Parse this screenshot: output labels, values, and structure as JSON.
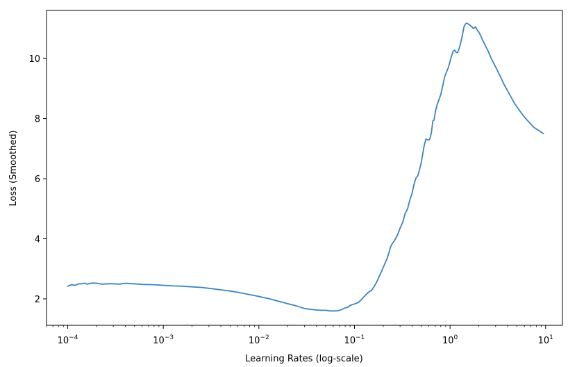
{
  "chart_data": {
    "type": "line",
    "xlabel": "Learning Rates (log-scale)",
    "ylabel": "Loss (Smoothed)",
    "xscale": "log",
    "xlim": [
      6e-05,
      15
    ],
    "ylim": [
      1.12,
      11.6
    ],
    "grid": false,
    "x_ticks": [
      {
        "base": "10",
        "exp": "−4",
        "value": 0.0001
      },
      {
        "base": "10",
        "exp": "−3",
        "value": 0.001
      },
      {
        "base": "10",
        "exp": "−2",
        "value": 0.01
      },
      {
        "base": "10",
        "exp": "−1",
        "value": 0.1
      },
      {
        "base": "10",
        "exp": "0",
        "value": 1
      },
      {
        "base": "10",
        "exp": "1",
        "value": 10
      }
    ],
    "y_ticks": [
      {
        "label": "2",
        "value": 2
      },
      {
        "label": "4",
        "value": 4
      },
      {
        "label": "6",
        "value": 6
      },
      {
        "label": "8",
        "value": 8
      },
      {
        "label": "10",
        "value": 10
      }
    ],
    "series": [
      {
        "color": "#3a84bf",
        "x": [
          0.0001,
          0.00011,
          0.00012,
          0.00013,
          0.00014,
          0.00015,
          0.00016,
          0.00018,
          0.0002,
          0.00023,
          0.00026,
          0.0003,
          0.00035,
          0.0004,
          0.0005,
          0.0006,
          0.0008,
          0.001,
          0.0013,
          0.0016,
          0.002,
          0.0025,
          0.003,
          0.004,
          0.005,
          0.006,
          0.008,
          0.01,
          0.013,
          0.016,
          0.02,
          0.025,
          0.03,
          0.035,
          0.04,
          0.045,
          0.05,
          0.055,
          0.06,
          0.065,
          0.07,
          0.075,
          0.08,
          0.085,
          0.09,
          0.1,
          0.11,
          0.12,
          0.13,
          0.14,
          0.15,
          0.16,
          0.17,
          0.18,
          0.19,
          0.2,
          0.21,
          0.22,
          0.23,
          0.24,
          0.25,
          0.26,
          0.28,
          0.3,
          0.32,
          0.34,
          0.36,
          0.38,
          0.4,
          0.42,
          0.44,
          0.46,
          0.48,
          0.5,
          0.52,
          0.54,
          0.56,
          0.58,
          0.6,
          0.62,
          0.64,
          0.66,
          0.68,
          0.7,
          0.73,
          0.76,
          0.8,
          0.84,
          0.88,
          0.92,
          0.96,
          1.0,
          1.04,
          1.08,
          1.12,
          1.16,
          1.2,
          1.25,
          1.3,
          1.35,
          1.4,
          1.45,
          1.5,
          1.55,
          1.6,
          1.65,
          1.7,
          1.75,
          1.8,
          1.85,
          1.9,
          1.95,
          2.0,
          2.1,
          2.2,
          2.3,
          2.5,
          2.7,
          3.0,
          3.3,
          3.7,
          4.2,
          4.7,
          5.3,
          6.0,
          6.8,
          7.6,
          8.5,
          9.5
        ],
        "y": [
          2.42,
          2.47,
          2.45,
          2.5,
          2.5,
          2.52,
          2.49,
          2.53,
          2.52,
          2.49,
          2.5,
          2.5,
          2.49,
          2.52,
          2.5,
          2.48,
          2.47,
          2.45,
          2.43,
          2.42,
          2.4,
          2.38,
          2.35,
          2.3,
          2.26,
          2.22,
          2.14,
          2.08,
          2.0,
          1.92,
          1.84,
          1.76,
          1.68,
          1.65,
          1.63,
          1.62,
          1.62,
          1.6,
          1.6,
          1.6,
          1.62,
          1.66,
          1.7,
          1.72,
          1.78,
          1.83,
          1.88,
          2.0,
          2.12,
          2.22,
          2.28,
          2.4,
          2.55,
          2.72,
          2.88,
          3.05,
          3.2,
          3.35,
          3.55,
          3.75,
          3.85,
          3.92,
          4.1,
          4.35,
          4.55,
          4.85,
          5.0,
          5.3,
          5.5,
          5.82,
          6.02,
          6.1,
          6.3,
          6.55,
          6.85,
          7.15,
          7.32,
          7.3,
          7.28,
          7.35,
          7.55,
          7.92,
          7.95,
          8.2,
          8.45,
          8.6,
          8.8,
          9.1,
          9.4,
          9.55,
          9.7,
          9.9,
          10.1,
          10.25,
          10.28,
          10.2,
          10.2,
          10.35,
          10.55,
          10.8,
          11.05,
          11.15,
          11.18,
          11.15,
          11.12,
          11.08,
          11.05,
          11.0,
          11.02,
          11.05,
          10.98,
          10.92,
          10.88,
          10.75,
          10.6,
          10.48,
          10.25,
          10.0,
          9.72,
          9.45,
          9.12,
          8.8,
          8.52,
          8.28,
          8.05,
          7.86,
          7.7,
          7.6,
          7.5
        ]
      }
    ]
  }
}
